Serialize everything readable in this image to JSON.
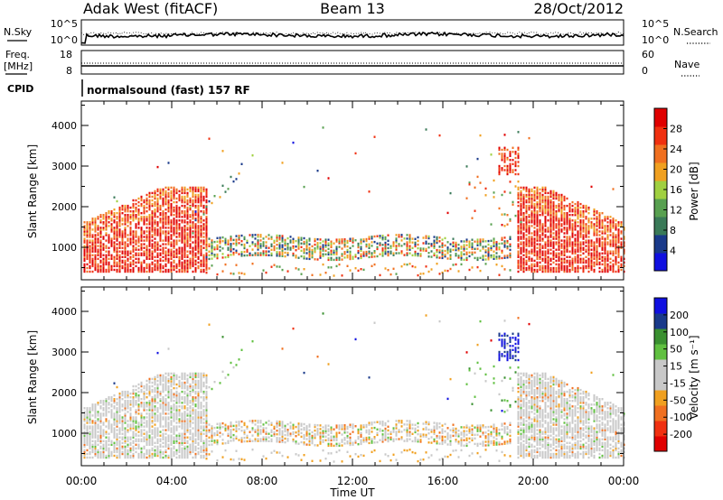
{
  "header": {
    "station": "Adak West (fitACF)",
    "beam": "Beam 13",
    "date": "28/Oct/2012"
  },
  "panels": {
    "nsky_label": "N.Sky",
    "nsearch_label": "N.Search",
    "freq_label_1": "Freq.",
    "freq_label_2": "[MHz]",
    "nave_label": "Nave",
    "cpid_label": "CPID",
    "cpid_text": "normalsound (fast) 157 RF",
    "noise_ticks_left": [
      "10^5",
      "10^0"
    ],
    "noise_ticks_right": [
      "10^5",
      "10^0"
    ],
    "freq_ticks": [
      "18",
      "8"
    ],
    "nave_ticks": [
      "60",
      "0"
    ]
  },
  "colors": {
    "power_scale": [
      "#1010e0",
      "#1a3a8a",
      "#3a7a58",
      "#58a050",
      "#a0d040",
      "#f0a020",
      "#f07020",
      "#f03010",
      "#e00000"
    ],
    "velocity_scale": [
      "#e00000",
      "#f03010",
      "#f07020",
      "#f0a020",
      "#c8c8c8",
      "#c8c8c8",
      "#60c040",
      "#3a9030",
      "#1a3a8a",
      "#1010e0"
    ]
  },
  "chart_data": [
    {
      "type": "heatmap",
      "quantity": "Power",
      "ylabel": "Slant Range [km]",
      "xlabel": "",
      "x_ticks": [
        "00:00",
        "04:00",
        "08:00",
        "12:00",
        "16:00",
        "20:00",
        "00:00"
      ],
      "y_ticks": [
        "1000",
        "2000",
        "3000",
        "4000"
      ],
      "ylim": [
        200,
        4600
      ],
      "colorbar_label": "Power [dB]",
      "colorbar_ticks": [
        "4",
        "8",
        "12",
        "16",
        "20",
        "24",
        "28"
      ],
      "colorbar_range": [
        0,
        32
      ]
    },
    {
      "type": "heatmap",
      "quantity": "Velocity",
      "ylabel": "Slant Range [km]",
      "xlabel": "Time UT",
      "x_ticks": [
        "00:00",
        "04:00",
        "08:00",
        "12:00",
        "16:00",
        "20:00",
        "00:00"
      ],
      "y_ticks": [
        "1000",
        "2000",
        "3000",
        "4000"
      ],
      "ylim": [
        200,
        4600
      ],
      "colorbar_label": "Velocity [m s⁻¹]",
      "colorbar_ticks": [
        "-200",
        "-100",
        "-50",
        "-15",
        "15",
        "50",
        "100",
        "200"
      ],
      "colorbar_range": [
        -250,
        250
      ]
    }
  ]
}
